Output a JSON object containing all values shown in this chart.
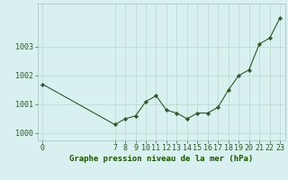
{
  "x_values": [
    0,
    7,
    8,
    9,
    10,
    11,
    12,
    13,
    14,
    15,
    16,
    17,
    18,
    19,
    20,
    21,
    22,
    23
  ],
  "y_values": [
    1001.7,
    1000.3,
    1000.5,
    1000.6,
    1001.1,
    1001.3,
    1000.8,
    1000.7,
    1000.5,
    1000.7,
    1000.7,
    1000.9,
    1001.5,
    1002.0,
    1002.2,
    1003.1,
    1003.3,
    1004.0
  ],
  "x_labels": [
    0,
    7,
    8,
    9,
    10,
    11,
    12,
    13,
    14,
    15,
    16,
    17,
    18,
    19,
    20,
    21,
    22,
    23
  ],
  "line_color": "#2d5a27",
  "marker_color": "#2d5a27",
  "bg_color": "#d8f0f0",
  "grid_color": "#b8d8d0",
  "xlabel": "Graphe pression niveau de la mer (hPa)",
  "ylim_min": 999.75,
  "ylim_max": 1004.5,
  "xlim_min": -0.5,
  "xlim_max": 23.5,
  "ytick_values": [
    1000,
    1001,
    1002,
    1003
  ],
  "xlabel_color": "#1a5500",
  "xlabel_fontsize": 6.5,
  "tick_fontsize": 6.0,
  "tick_color": "#2d5a27",
  "linewidth": 0.8,
  "markersize": 2.2
}
